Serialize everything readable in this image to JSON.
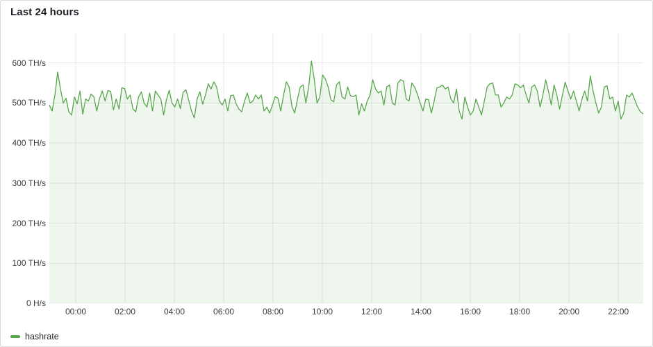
{
  "panel": {
    "title": "Last 24 hours"
  },
  "legend": {
    "items": [
      {
        "label": "hashrate",
        "color": "#57A64B"
      }
    ]
  },
  "colors": {
    "line": "#57A64B",
    "area_fill": "rgba(87,166,75,0.10)",
    "grid": "#e7e8e9",
    "tick_text": "#383b40",
    "title_text": "#1f2227",
    "panel_border": "#d8d9da",
    "panel_bg": "#ffffff"
  },
  "chart_data": {
    "type": "area",
    "title": "Last 24 hours",
    "legend_position": "bottom-left",
    "grid": true,
    "x_axis": {
      "kind": "time",
      "start_hour": -1.07,
      "end_hour": 23.01,
      "ticks": [
        {
          "hour": 0,
          "label": "00:00"
        },
        {
          "hour": 2,
          "label": "02:00"
        },
        {
          "hour": 4,
          "label": "04:00"
        },
        {
          "hour": 6,
          "label": "06:00"
        },
        {
          "hour": 8,
          "label": "08:00"
        },
        {
          "hour": 10,
          "label": "10:00"
        },
        {
          "hour": 12,
          "label": "12:00"
        },
        {
          "hour": 14,
          "label": "14:00"
        },
        {
          "hour": 16,
          "label": "16:00"
        },
        {
          "hour": 18,
          "label": "18:00"
        },
        {
          "hour": 20,
          "label": "20:00"
        },
        {
          "hour": 22,
          "label": "22:00"
        }
      ]
    },
    "y_axis": {
      "min": 0,
      "max": 674,
      "unit": "TH/s",
      "ticks": [
        {
          "value": 600,
          "label": "600 TH/s"
        },
        {
          "value": 500,
          "label": "500 TH/s"
        },
        {
          "value": 400,
          "label": "400 TH/s"
        },
        {
          "value": 300,
          "label": "300 TH/s"
        },
        {
          "value": 200,
          "label": "200 TH/s"
        },
        {
          "value": 100,
          "label": "100 TH/s"
        },
        {
          "value": 0,
          "label": "0 H/s"
        }
      ]
    },
    "series": [
      {
        "name": "hashrate",
        "unit": "TH/s",
        "color": "#57A64B",
        "fill_opacity": 0.1,
        "approx_mean": 510,
        "approx_min": 460,
        "approx_max": 605,
        "values": [
          495,
          480,
          520,
          577,
          535,
          500,
          512,
          478,
          470,
          515,
          498,
          530,
          472,
          510,
          505,
          522,
          515,
          480,
          511,
          530,
          505,
          531,
          529,
          483,
          510,
          485,
          538,
          536,
          510,
          520,
          485,
          478,
          515,
          528,
          500,
          490,
          525,
          480,
          530,
          520,
          510,
          470,
          508,
          532,
          500,
          490,
          510,
          486,
          527,
          533,
          507,
          480,
          463,
          510,
          528,
          497,
          520,
          548,
          535,
          553,
          540,
          505,
          495,
          510,
          480,
          518,
          520,
          498,
          485,
          478,
          505,
          525,
          500,
          505,
          520,
          510,
          520,
          480,
          490,
          475,
          495,
          516,
          512,
          480,
          520,
          553,
          540,
          492,
          475,
          510,
          540,
          545,
          500,
          540,
          605,
          560,
          500,
          515,
          570,
          560,
          540,
          508,
          503,
          545,
          553,
          515,
          510,
          540,
          518,
          516,
          520,
          470,
          498,
          480,
          505,
          520,
          558,
          535,
          525,
          530,
          495,
          540,
          545,
          500,
          495,
          550,
          558,
          555,
          510,
          505,
          550,
          540,
          522,
          500,
          480,
          510,
          508,
          475,
          505,
          538,
          540,
          545,
          535,
          540,
          510,
          500,
          535,
          480,
          460,
          515,
          490,
          470,
          480,
          510,
          490,
          470,
          505,
          540,
          548,
          550,
          520,
          520,
          490,
          500,
          515,
          510,
          520,
          548,
          545,
          538,
          545,
          520,
          500,
          540,
          545,
          530,
          490,
          520,
          558,
          530,
          495,
          545,
          520,
          485,
          520,
          552,
          530,
          510,
          530,
          505,
          480,
          510,
          530,
          505,
          568,
          530,
          500,
          475,
          490,
          540,
          543,
          510,
          515,
          480,
          505,
          460,
          475,
          520,
          515,
          525,
          507,
          490,
          478,
          473
        ]
      }
    ]
  }
}
